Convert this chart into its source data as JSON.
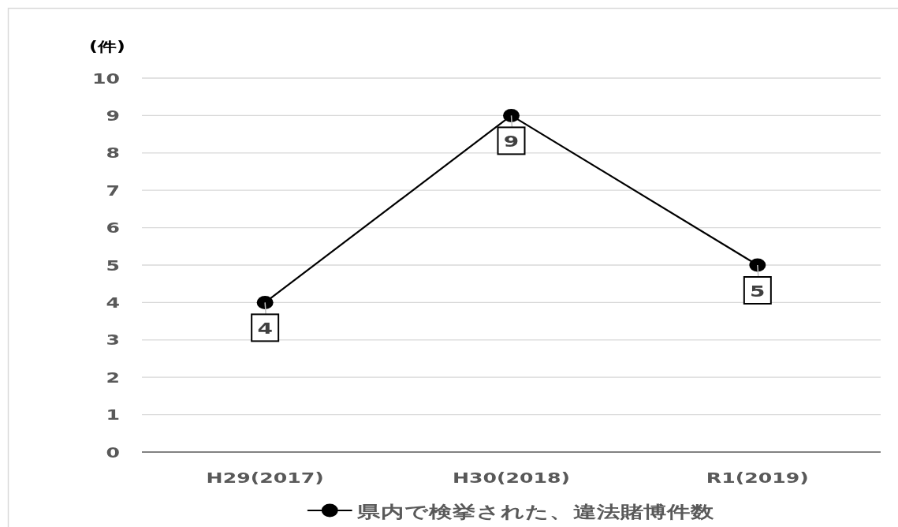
{
  "chart_data": {
    "type": "line",
    "ylabel": "(件)",
    "categories": [
      "H29(2017)",
      "H30(2018)",
      "R1(2019)"
    ],
    "series": [
      {
        "name": "県内で検挙された、違法賭博件数",
        "color": "#000000",
        "values": [
          4,
          9,
          5
        ]
      }
    ],
    "ylim": [
      0,
      10
    ],
    "yticks": [
      0,
      1,
      2,
      3,
      4,
      5,
      6,
      7,
      8,
      9,
      10
    ],
    "grid": "y",
    "legend": "bottom",
    "marker": "circle",
    "line_style": "solid",
    "data_labels": true
  }
}
